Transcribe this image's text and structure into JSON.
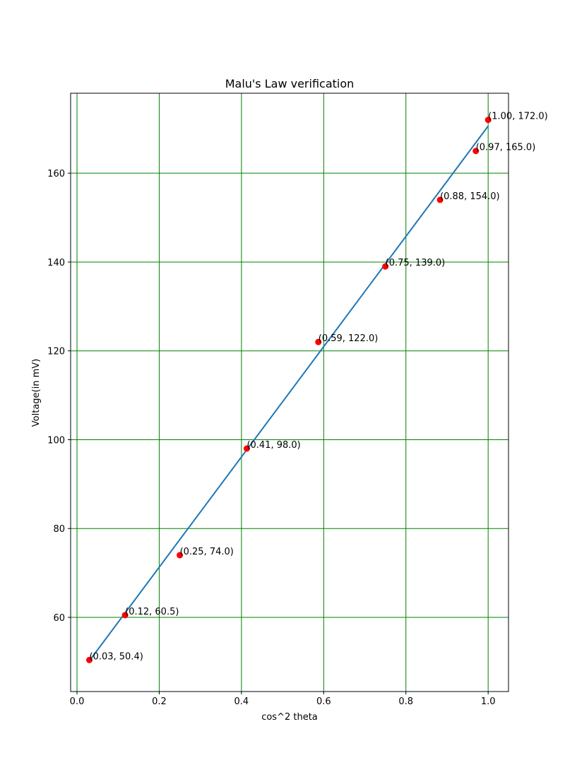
{
  "chart_data": {
    "type": "scatter",
    "title": "Malu's Law verification",
    "xlabel": "cos^2 theta",
    "ylabel": "Voltage(in mV)",
    "xlim": [
      -0.0155,
      1.0495
    ],
    "ylim": [
      43.3,
      178.0
    ],
    "xticks": [
      0.0,
      0.2,
      0.4,
      0.6,
      0.8,
      1.0
    ],
    "xtick_labels": [
      "0.0",
      "0.2",
      "0.4",
      "0.6",
      "0.8",
      "1.0"
    ],
    "yticks": [
      60,
      80,
      100,
      120,
      140,
      160
    ],
    "ytick_labels": [
      "60",
      "80",
      "100",
      "120",
      "140",
      "160"
    ],
    "grid": true,
    "grid_color": "#008000",
    "point_color": "#ff0000",
    "line_color": "#1f77b4",
    "points": [
      {
        "x": 0.03,
        "y": 50.4,
        "label": "(0.03, 50.4)"
      },
      {
        "x": 0.117,
        "y": 60.5,
        "label": "(0.12, 60.5)"
      },
      {
        "x": 0.25,
        "y": 74.0,
        "label": "(0.25, 74.0)"
      },
      {
        "x": 0.413,
        "y": 98.0,
        "label": "(0.41, 98.0)"
      },
      {
        "x": 0.587,
        "y": 122.0,
        "label": "(0.59, 122.0)"
      },
      {
        "x": 0.75,
        "y": 139.0,
        "label": "(0.75, 139.0)"
      },
      {
        "x": 0.883,
        "y": 154.0,
        "label": "(0.88, 154.0)"
      },
      {
        "x": 0.97,
        "y": 165.0,
        "label": "(0.97, 165.0)"
      },
      {
        "x": 1.0,
        "y": 172.0,
        "label": "(1.00, 172.0)"
      }
    ],
    "fit_line": {
      "x": [
        0.03,
        1.0
      ],
      "y": [
        50.2,
        170.6
      ]
    }
  }
}
